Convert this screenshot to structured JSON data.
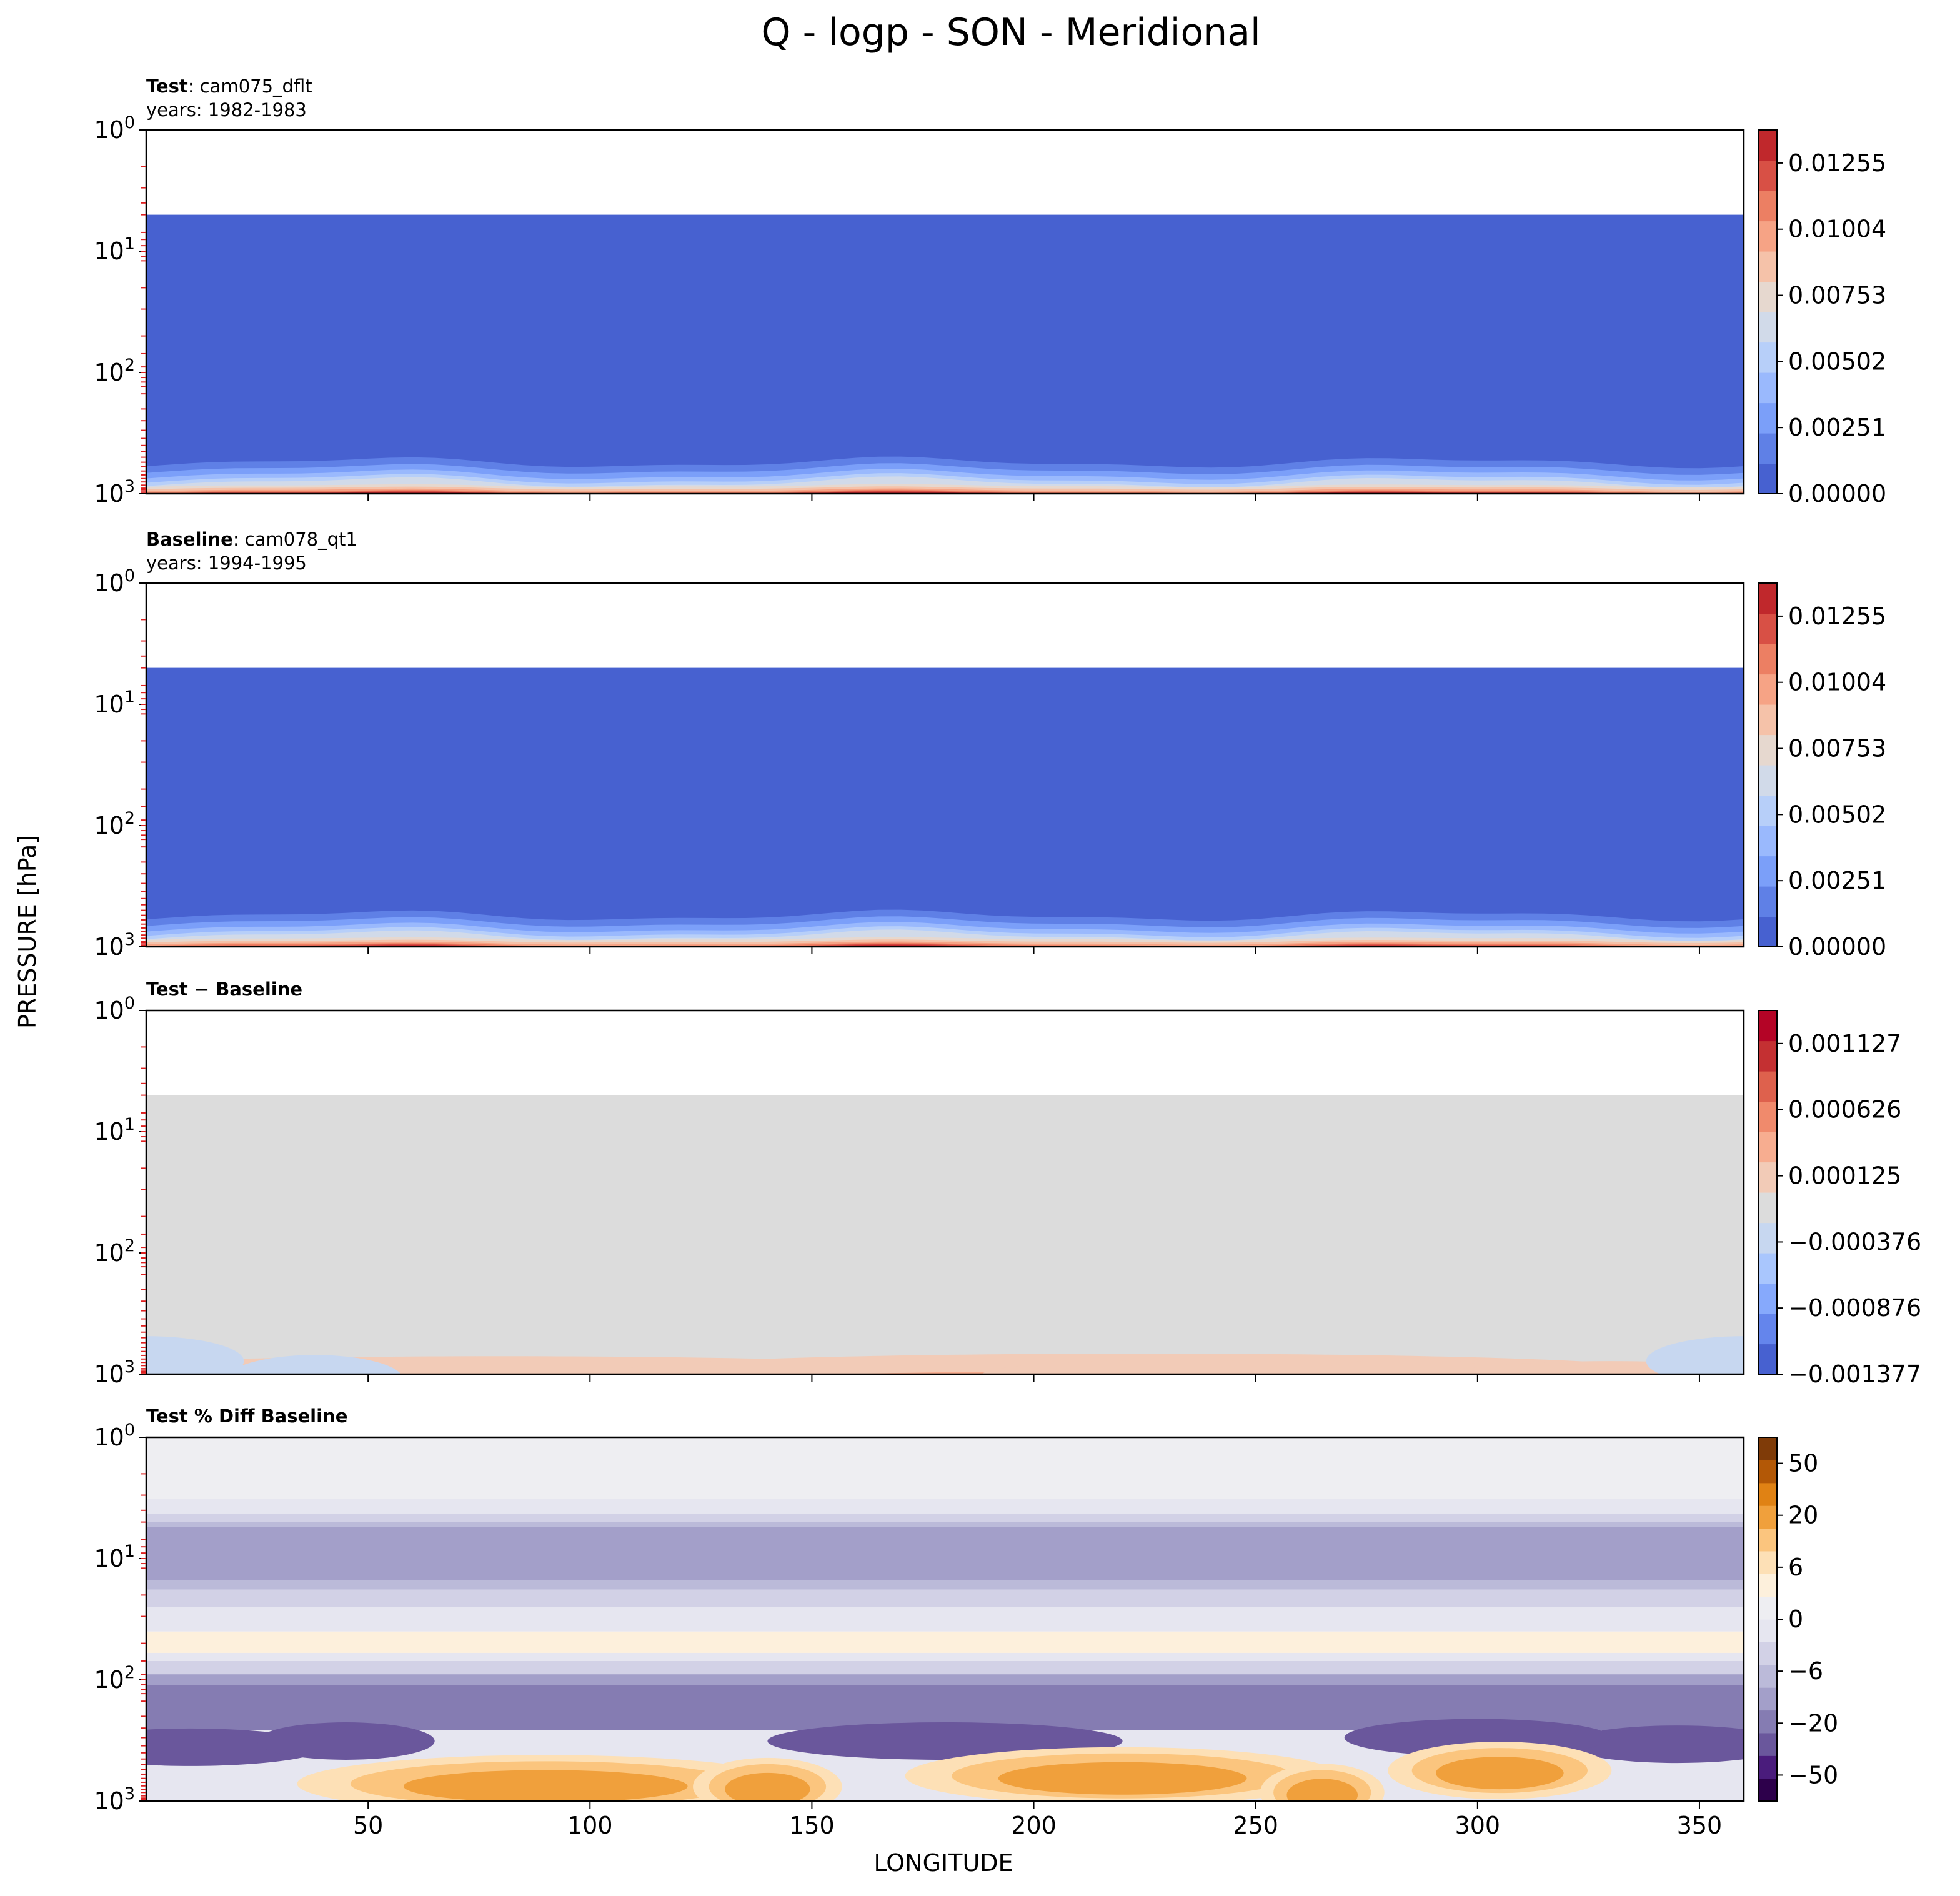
{
  "figure": {
    "title": "Q - logp - SON - Meridional",
    "ylabel": "PRESSURE [hPa]",
    "xlabel": "LONGITUDE"
  },
  "x_axis": {
    "range": [
      0,
      360
    ],
    "ticks": [
      50,
      100,
      150,
      200,
      250,
      300,
      350
    ],
    "tick_labels": [
      "50",
      "100",
      "150",
      "200",
      "250",
      "300",
      "350"
    ]
  },
  "y_axis": {
    "scale": "log",
    "inverted": true,
    "range": [
      1,
      1000
    ],
    "ticks": [
      {
        "value": 1,
        "base": "10",
        "exp": "0"
      },
      {
        "value": 10,
        "base": "10",
        "exp": "1"
      },
      {
        "value": 100,
        "base": "10",
        "exp": "2"
      },
      {
        "value": 1000,
        "base": "10",
        "exp": "3"
      }
    ],
    "model_levels": [
      2,
      3,
      4,
      5,
      7,
      8,
      9,
      10,
      11,
      12,
      20,
      30,
      50,
      70,
      90,
      100,
      110,
      120,
      130,
      150,
      200,
      250,
      300,
      350,
      400,
      450,
      500,
      550,
      600,
      650,
      700,
      750,
      800,
      850,
      900,
      925,
      950,
      975
    ],
    "level_marker_color": "#dd2222"
  },
  "chart_data": [
    {
      "type": "heatmap",
      "label_bold": "Test",
      "label_rest": ": cam075_dflt",
      "years": "years: 1982-1983",
      "colormap": "coolwarm",
      "levels": [
        0.0,
        0.001255,
        0.00251,
        0.003765,
        0.00502,
        0.006275,
        0.00753,
        0.008785,
        0.01004,
        0.011295,
        0.01255,
        0.013805
      ],
      "colorbar_ticks": [
        0.0,
        0.00251,
        0.00502,
        0.00753,
        0.01004,
        0.01255
      ],
      "colorbar_tick_labels": [
        "0.00000",
        "0.00251",
        "0.00502",
        "0.00753",
        "0.01004",
        "0.01255"
      ],
      "colors": [
        "#4761d0",
        "#5f80e6",
        "#7b9ff9",
        "#9ab9fd",
        "#b7cff9",
        "#d1dae9",
        "#e6d8cf",
        "#f5c2a9",
        "#f6a385",
        "#ec7f63",
        "#d85045",
        "#c0282c"
      ],
      "data_top_hPa": 5,
      "field": "specific_humidity"
    },
    {
      "type": "heatmap",
      "label_bold": "Baseline",
      "label_rest": ": cam078_qt1",
      "years": "years: 1994-1995",
      "colormap": "coolwarm",
      "levels": [
        0.0,
        0.001255,
        0.00251,
        0.003765,
        0.00502,
        0.006275,
        0.00753,
        0.008785,
        0.01004,
        0.011295,
        0.01255,
        0.013805
      ],
      "colorbar_ticks": [
        0.0,
        0.00251,
        0.00502,
        0.00753,
        0.01004,
        0.01255
      ],
      "colorbar_tick_labels": [
        "0.00000",
        "0.00251",
        "0.00502",
        "0.00753",
        "0.01004",
        "0.01255"
      ],
      "colors": [
        "#4761d0",
        "#5f80e6",
        "#7b9ff9",
        "#9ab9fd",
        "#b7cff9",
        "#d1dae9",
        "#e6d8cf",
        "#f5c2a9",
        "#f6a385",
        "#ec7f63",
        "#d85045",
        "#c0282c"
      ],
      "data_top_hPa": 5,
      "field": "specific_humidity"
    },
    {
      "type": "heatmap",
      "label_bold": "Test − Baseline",
      "label_rest": "",
      "years": "",
      "colormap": "coolwarm",
      "levels": [
        -0.001377,
        -0.001127,
        -0.000876,
        -0.000626,
        -0.000376,
        -0.000125,
        0.000125,
        0.000376,
        0.000626,
        0.000876,
        0.001127,
        0.001377
      ],
      "colorbar_ticks": [
        -0.001377,
        -0.000876,
        -0.000376,
        0.000125,
        0.000626,
        0.001127
      ],
      "colorbar_tick_labels": [
        "−0.001377",
        "−0.000876",
        "−0.000376",
        "0.000125",
        "0.000626",
        "0.001127"
      ],
      "colors": [
        "#4761d0",
        "#6485ec",
        "#86a9fc",
        "#a9c6fd",
        "#c7d7f0",
        "#dcdcdc",
        "#f2cbb7",
        "#f7ad90",
        "#f08a6c",
        "#de614d",
        "#c43032",
        "#b40426"
      ],
      "data_top_hPa": 5,
      "field": "difference"
    },
    {
      "type": "heatmap",
      "label_bold": "Test % Diff Baseline",
      "label_rest": "",
      "years": "",
      "colormap": "PuOr_r",
      "colorbar_ticks": [
        -50,
        -20,
        -6,
        0,
        6,
        20,
        50
      ],
      "colorbar_tick_labels": [
        "−50",
        "−20",
        "−6",
        "0",
        "6",
        "20",
        "50"
      ],
      "colors": [
        "#2d004b",
        "#4a1c7c",
        "#6a579c",
        "#857cb2",
        "#a39fc9",
        "#bbbad9",
        "#d2d1e6",
        "#e6e6f0",
        "#eeeef2",
        "#fdf0dc",
        "#fde0b6",
        "#fbc57e",
        "#f0a03c",
        "#e08214",
        "#b35806",
        "#7f3b08"
      ],
      "field": "percent_difference"
    }
  ]
}
